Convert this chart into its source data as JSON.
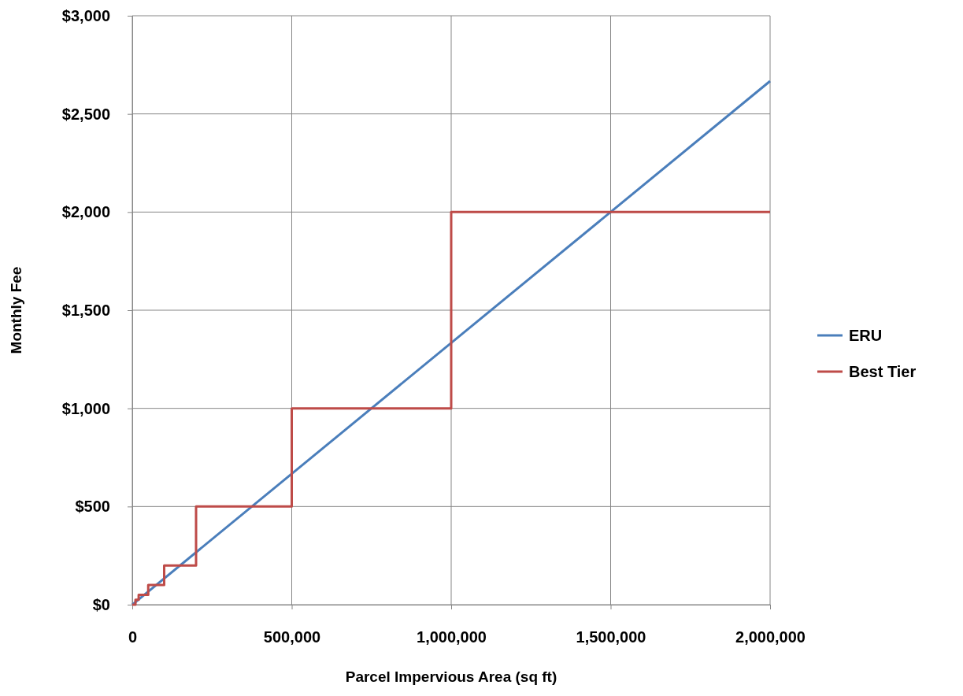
{
  "chart_data": {
    "type": "line",
    "xlabel": "Parcel Impervious Area (sq ft)",
    "ylabel": "Monthly Fee",
    "xlim": [
      0,
      2000000
    ],
    "xticks": [
      {
        "value": 0,
        "label": "0"
      },
      {
        "value": 500000,
        "label": "500,000"
      },
      {
        "value": 1000000,
        "label": "1,000,000"
      },
      {
        "value": 1500000,
        "label": "1,500,000"
      },
      {
        "value": 2000000,
        "label": "2,000,000"
      }
    ],
    "ylim": [
      0,
      3000
    ],
    "yticks": [
      {
        "value": 0,
        "label": "$0"
      },
      {
        "value": 500,
        "label": "$500"
      },
      {
        "value": 1000,
        "label": "$1,000"
      },
      {
        "value": 1500,
        "label": "$1,500"
      },
      {
        "value": 2000,
        "label": "$2,000"
      },
      {
        "value": 2500,
        "label": "$2,500"
      },
      {
        "value": 3000,
        "label": "$3,000"
      }
    ],
    "grid": true,
    "legend": "right",
    "marker": "none",
    "series": [
      {
        "name": "ERU",
        "color": "#4a7ebb",
        "x": [
          0,
          2000000
        ],
        "values": [
          0,
          2667
        ]
      },
      {
        "name": "Best Tier",
        "type": "step",
        "color": "#be4b48",
        "x": [
          0,
          10000,
          20000,
          50000,
          100000,
          200000,
          500000,
          1000000,
          2000000
        ],
        "values": [
          0,
          25,
          50,
          100,
          200,
          500,
          1000,
          2000,
          2000
        ]
      }
    ]
  }
}
